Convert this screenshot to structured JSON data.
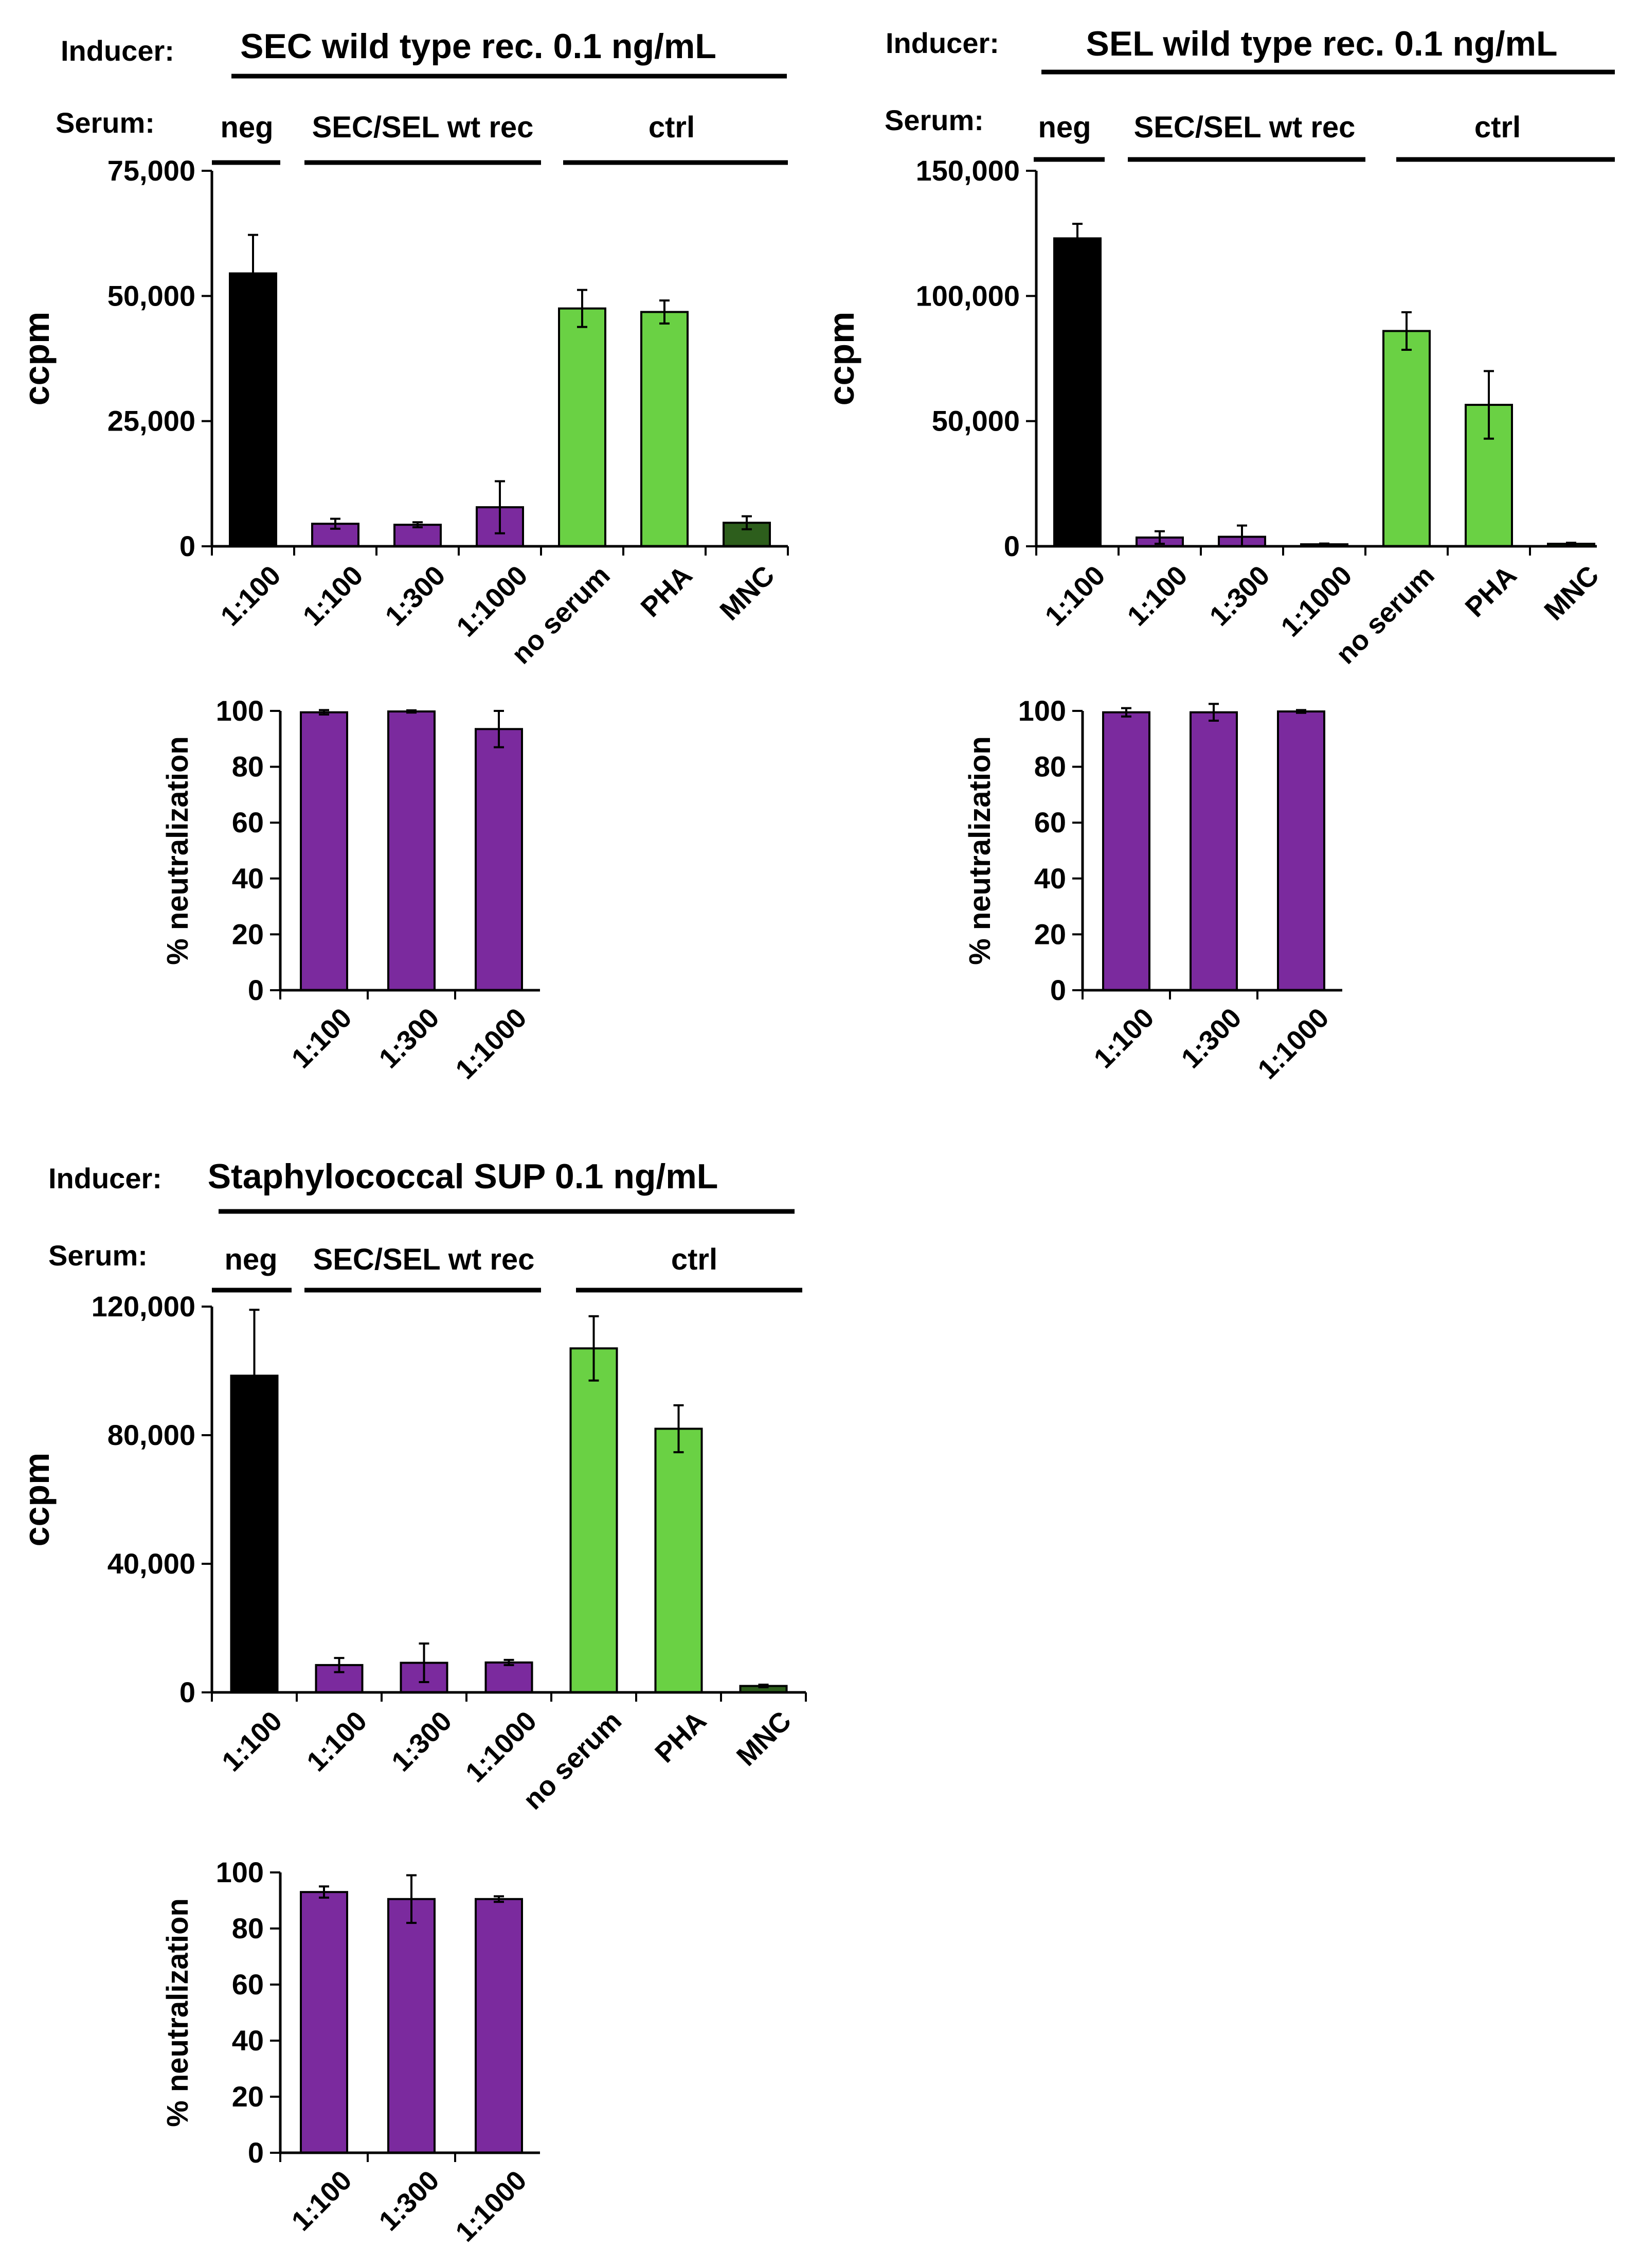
{
  "colors": {
    "neg": "#000000",
    "serum": "#7b2a9e",
    "ctrl": "#6ad144",
    "mnc": "#2d5e1c",
    "axis": "#000000"
  },
  "chart_data": [
    {
      "id": "sec_ccpm",
      "type": "bar",
      "inducer_label": "Inducer:",
      "title": "SEC wild type rec. 0.1 ng/mL",
      "serum_label": "Serum:",
      "groups": [
        "neg",
        "SEC/SEL wt rec",
        "ctrl"
      ],
      "ylabel": "ccpm",
      "xlabel": "",
      "ylim": [
        0,
        75000
      ],
      "yticks": [
        "0",
        "25,000",
        "50,000",
        "75,000"
      ],
      "ytick_values": [
        0,
        25000,
        50000,
        75000
      ],
      "categories": [
        "1:100",
        "1:100",
        "1:300",
        "1:1000",
        "no serum",
        "PHA",
        "MNC"
      ],
      "values": [
        54500,
        4500,
        4300,
        7800,
        47500,
        46800,
        4700
      ],
      "errors": [
        7700,
        1000,
        500,
        5200,
        3700,
        2300,
        1300
      ],
      "color_keys": [
        "neg",
        "serum",
        "serum",
        "serum",
        "ctrl",
        "ctrl",
        "mnc"
      ]
    },
    {
      "id": "sel_ccpm",
      "type": "bar",
      "inducer_label": "Inducer:",
      "title": "SEL wild type rec. 0.1 ng/mL",
      "serum_label": "Serum:",
      "groups": [
        "neg",
        "SEC/SEL wt rec",
        "ctrl"
      ],
      "ylabel": "ccpm",
      "xlabel": "",
      "ylim": [
        0,
        150000
      ],
      "yticks": [
        "0",
        "50,000",
        "100,000",
        "150,000"
      ],
      "ytick_values": [
        0,
        50000,
        100000,
        150000
      ],
      "categories": [
        "1:100",
        "1:100",
        "1:300",
        "1:1000",
        "no serum",
        "PHA",
        "MNC"
      ],
      "values": [
        123000,
        3500,
        3800,
        800,
        86000,
        56500,
        1000
      ],
      "errors": [
        5800,
        2500,
        4500,
        300,
        7500,
        13500,
        400
      ],
      "color_keys": [
        "neg",
        "serum",
        "serum",
        "serum",
        "ctrl",
        "ctrl",
        "mnc"
      ]
    },
    {
      "id": "sup_ccpm",
      "type": "bar",
      "inducer_label": "Inducer:",
      "title": "Staphylococcal SUP 0.1 ng/mL",
      "serum_label": "Serum:",
      "groups": [
        "neg",
        "SEC/SEL wt rec",
        "ctrl"
      ],
      "ylabel": "ccpm",
      "xlabel": "",
      "ylim": [
        0,
        120000
      ],
      "yticks": [
        "0",
        "40,000",
        "80,000",
        "120,000"
      ],
      "ytick_values": [
        0,
        40000,
        80000,
        120000
      ],
      "categories": [
        "1:100",
        "1:100",
        "1:300",
        "1:1000",
        "no serum",
        "PHA",
        "MNC"
      ],
      "values": [
        98500,
        8500,
        9200,
        9300,
        107000,
        82000,
        2000
      ],
      "errors": [
        20500,
        2200,
        6000,
        800,
        10000,
        7300,
        400
      ],
      "color_keys": [
        "neg",
        "serum",
        "serum",
        "serum",
        "ctrl",
        "ctrl",
        "mnc"
      ]
    },
    {
      "id": "sec_neut",
      "type": "bar",
      "ylabel": "% neutralization",
      "xlabel": "",
      "ylim": [
        0,
        100
      ],
      "yticks": [
        "0",
        "20",
        "40",
        "60",
        "80",
        "100"
      ],
      "ytick_values": [
        0,
        20,
        40,
        60,
        80,
        100
      ],
      "categories": [
        "1:100",
        "1:300",
        "1:1000"
      ],
      "values": [
        99.5,
        99.8,
        93.5
      ],
      "errors": [
        0.8,
        0.4,
        6.5
      ],
      "color_keys": [
        "serum",
        "serum",
        "serum"
      ]
    },
    {
      "id": "sel_neut",
      "type": "bar",
      "ylabel": "% neutralization",
      "xlabel": "",
      "ylim": [
        0,
        100
      ],
      "yticks": [
        "0",
        "20",
        "40",
        "60",
        "80",
        "100"
      ],
      "ytick_values": [
        0,
        20,
        40,
        60,
        80,
        100
      ],
      "categories": [
        "1:100",
        "1:300",
        "1:1000"
      ],
      "values": [
        99.5,
        99.5,
        99.8
      ],
      "errors": [
        1.5,
        3.0,
        0.5
      ],
      "color_keys": [
        "serum",
        "serum",
        "serum"
      ]
    },
    {
      "id": "sup_neut",
      "type": "bar",
      "ylabel": "% neutralization",
      "xlabel": "",
      "ylim": [
        0,
        100
      ],
      "yticks": [
        "0",
        "20",
        "40",
        "60",
        "80",
        "100"
      ],
      "ytick_values": [
        0,
        20,
        40,
        60,
        80,
        100
      ],
      "categories": [
        "1:100",
        "1:300",
        "1:1000"
      ],
      "values": [
        93.0,
        90.5,
        90.5
      ],
      "errors": [
        2.0,
        8.5,
        1.0
      ],
      "color_keys": [
        "serum",
        "serum",
        "serum"
      ]
    }
  ]
}
